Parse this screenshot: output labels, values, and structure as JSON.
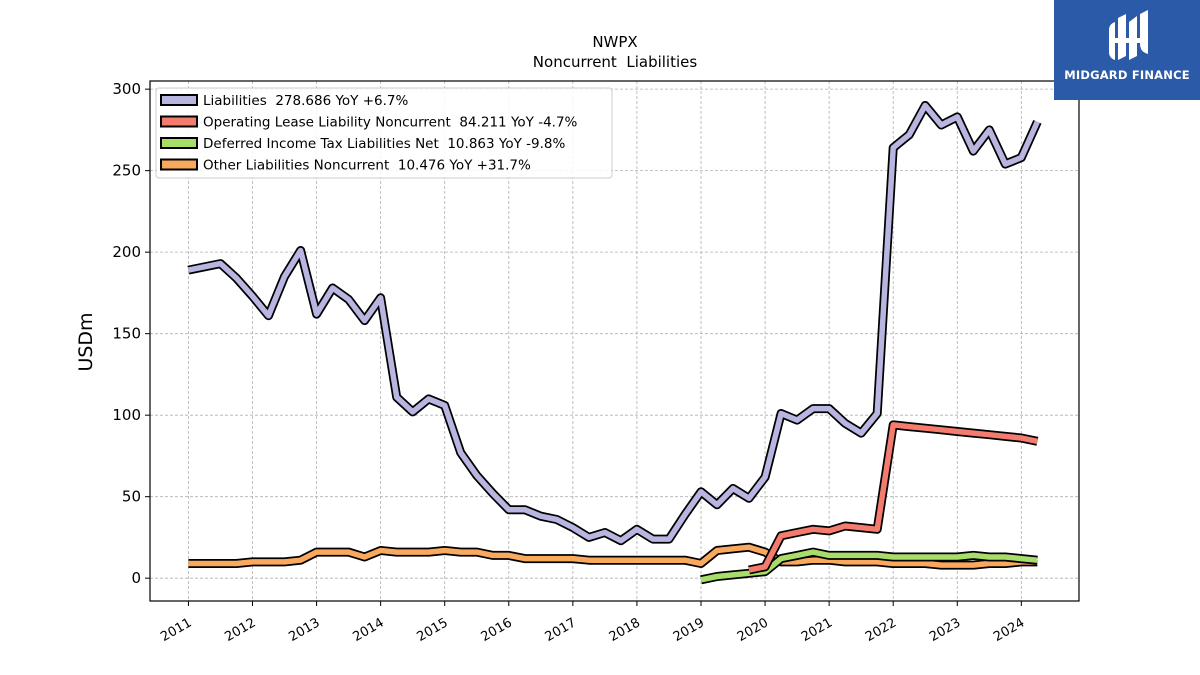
{
  "brand": {
    "name": "MIDGARD FINANCE",
    "color": "#2b5aa8"
  },
  "chart_data": {
    "type": "line",
    "title": "NWPX",
    "subtitle": "Noncurrent  Liabilities",
    "xlabel": "",
    "ylabel": "USDm",
    "xlim": [
      2010.4,
      2024.9
    ],
    "ylim": [
      -14,
      305
    ],
    "yticks": [
      0,
      50,
      100,
      150,
      200,
      250,
      300
    ],
    "xticks": [
      "2011",
      "2012",
      "2013",
      "2014",
      "2015",
      "2016",
      "2017",
      "2018",
      "2019",
      "2020",
      "2021",
      "2022",
      "2023",
      "2024"
    ],
    "grid": true,
    "legend_position": "top-left",
    "series": [
      {
        "name": "Liabilities  278.686 YoY +6.7%",
        "color": "#b8b5e0",
        "x": [
          2011.0,
          2011.5,
          2011.75,
          2012.0,
          2012.25,
          2012.5,
          2012.75,
          2013.0,
          2013.25,
          2013.5,
          2013.75,
          2014.0,
          2014.25,
          2014.5,
          2014.75,
          2015.0,
          2015.25,
          2015.5,
          2015.75,
          2016.0,
          2016.25,
          2016.5,
          2016.75,
          2017.0,
          2017.25,
          2017.5,
          2017.75,
          2018.0,
          2018.25,
          2018.5,
          2018.75,
          2019.0,
          2019.25,
          2019.5,
          2019.75,
          2020.0,
          2020.25,
          2020.5,
          2020.75,
          2021.0,
          2021.25,
          2021.5,
          2021.75,
          2022.0,
          2022.25,
          2022.5,
          2022.75,
          2023.0,
          2023.25,
          2023.5,
          2023.75,
          2024.0,
          2024.25
        ],
        "values": [
          189,
          193,
          184,
          173,
          161,
          185,
          201,
          162,
          178,
          171,
          158,
          172,
          111,
          102,
          110,
          106,
          77,
          63,
          52,
          42,
          42,
          38,
          36,
          31,
          25,
          28,
          23,
          30,
          24,
          24,
          39,
          53,
          45,
          55,
          49,
          62,
          101,
          97,
          104,
          104,
          95,
          89,
          101,
          264,
          272,
          290,
          278,
          283,
          262,
          275,
          254,
          258,
          280
        ]
      },
      {
        "name": "Operating Lease Liability Noncurrent  84.211 YoY -4.7%",
        "color": "#f47c6e",
        "x": [
          2019.75,
          2020.0,
          2020.25,
          2020.5,
          2020.75,
          2021.0,
          2021.25,
          2021.5,
          2021.75,
          2022.0,
          2022.25,
          2022.5,
          2022.75,
          2023.0,
          2023.25,
          2023.5,
          2023.75,
          2024.0,
          2024.25
        ],
        "values": [
          5,
          7,
          26,
          28,
          30,
          29,
          32,
          31,
          30,
          94,
          93,
          92,
          91,
          90,
          89,
          88,
          87,
          86,
          84
        ]
      },
      {
        "name": "Deferred Income Tax Liabilities Net  10.863 YoY -9.8%",
        "color": "#a8dd6a",
        "x": [
          2019.0,
          2019.25,
          2019.5,
          2019.75,
          2020.0,
          2020.25,
          2020.5,
          2020.75,
          2021.0,
          2021.25,
          2021.5,
          2021.75,
          2022.0,
          2022.25,
          2022.5,
          2022.75,
          2023.0,
          2023.25,
          2023.5,
          2023.75,
          2024.0,
          2024.25
        ],
        "values": [
          -1,
          1,
          2,
          3,
          4,
          12,
          14,
          16,
          14,
          14,
          14,
          14,
          13,
          13,
          13,
          13,
          13,
          14,
          13,
          13,
          12,
          11
        ]
      },
      {
        "name": "Other Liabilities Noncurrent  10.476 YoY +31.7%",
        "color": "#f9a95e",
        "x": [
          2011.0,
          2011.75,
          2012.0,
          2012.25,
          2012.5,
          2012.75,
          2013.0,
          2013.25,
          2013.5,
          2013.75,
          2014.0,
          2014.25,
          2014.5,
          2014.75,
          2015.0,
          2015.25,
          2015.5,
          2015.75,
          2016.0,
          2016.25,
          2016.5,
          2016.75,
          2017.0,
          2017.25,
          2017.5,
          2017.75,
          2018.0,
          2018.25,
          2018.5,
          2018.75,
          2019.0,
          2019.25,
          2019.5,
          2019.75,
          2020.0,
          2020.25,
          2020.5,
          2020.75,
          2021.0,
          2021.25,
          2021.5,
          2021.75,
          2022.0,
          2022.25,
          2022.5,
          2022.75,
          2023.0,
          2023.25,
          2023.5,
          2023.75,
          2024.0,
          2024.25
        ],
        "values": [
          9,
          9,
          10,
          10,
          10,
          11,
          16,
          16,
          16,
          13,
          17,
          16,
          16,
          16,
          17,
          16,
          16,
          14,
          14,
          12,
          12,
          12,
          12,
          11,
          11,
          11,
          11,
          11,
          11,
          11,
          9,
          17,
          18,
          19,
          16,
          10,
          10,
          11,
          11,
          10,
          10,
          10,
          9,
          9,
          9,
          8,
          8,
          8,
          9,
          9,
          10,
          10
        ]
      }
    ]
  }
}
